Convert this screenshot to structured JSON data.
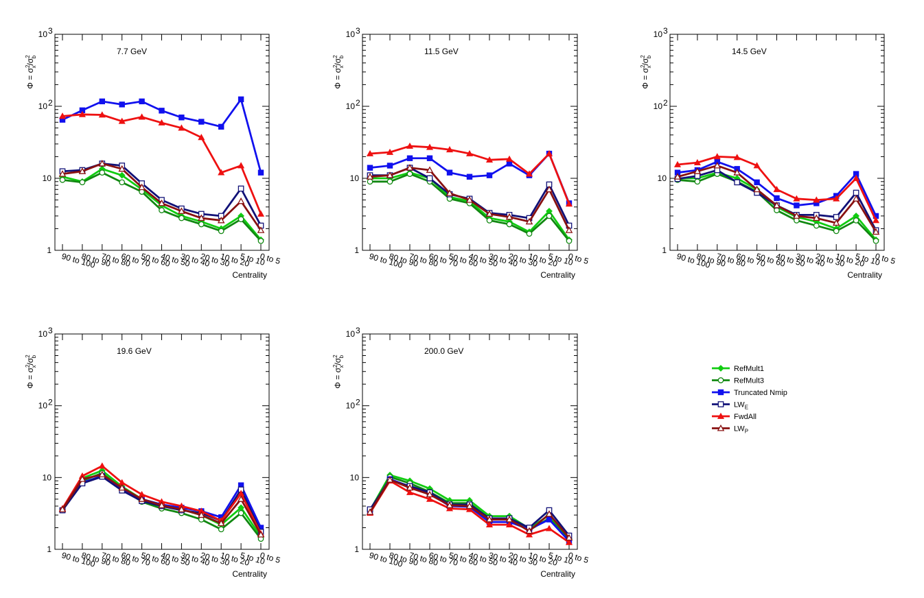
{
  "chart_data": {
    "type": "line",
    "ylabel": "Φ = σ_x²/σ_b²",
    "xlabel": "Centrality",
    "yscale": "log",
    "ylim": [
      1,
      1000
    ],
    "y_ticks": [
      {
        "value": 1,
        "label": "1"
      },
      {
        "value": 10,
        "label": "10"
      },
      {
        "value": 100,
        "label": "10",
        "sup": "2"
      },
      {
        "value": 1000,
        "label": "10",
        "sup": "3"
      }
    ],
    "categories": [
      "90 to 100",
      "80 to 90",
      "70 to 80",
      "60 to 70",
      "50 to 60",
      "40 to 50",
      "30 to 40",
      "20 to 30",
      "10 to 20",
      "5 to 10",
      "0 to 5"
    ],
    "legend": {
      "placement": "right",
      "entries": [
        {
          "name": "RefMult1",
          "base": "RefMult1",
          "sub": "",
          "color": "#11cc11",
          "marker": "diamond-filled"
        },
        {
          "name": "RefMult3",
          "base": "RefMult3",
          "sub": "",
          "color": "#118811",
          "marker": "circle-open"
        },
        {
          "name": "Truncated Nmip",
          "base": "Truncated Nmip",
          "sub": "",
          "color": "#1111ee",
          "marker": "square-filled"
        },
        {
          "name": "LW_E",
          "base": "LW",
          "sub": "E",
          "color": "#111177",
          "marker": "square-open"
        },
        {
          "name": "FwdAll",
          "base": "FwdAll",
          "sub": "",
          "color": "#ee1111",
          "marker": "triangle-filled"
        },
        {
          "name": "LW_P",
          "base": "LW",
          "sub": "P",
          "color": "#881111",
          "marker": "triangle-open"
        }
      ]
    },
    "panels": [
      {
        "title": "7.7 GeV",
        "series": [
          {
            "name": "RefMult1",
            "values": [
              10.5,
              9.0,
              13.5,
              11.0,
              7.0,
              4.2,
              3.0,
              2.5,
              2.0,
              3.0,
              1.4
            ]
          },
          {
            "name": "RefMult3",
            "values": [
              9.5,
              8.8,
              12.0,
              8.8,
              6.5,
              3.6,
              2.8,
              2.3,
              1.85,
              2.7,
              1.35
            ]
          },
          {
            "name": "Truncated Nmip",
            "values": [
              65,
              88,
              117,
              106,
              117,
              87,
              70,
              61,
              52,
              125,
              12
            ]
          },
          {
            "name": "LW_E",
            "values": [
              12.5,
              13.0,
              16.0,
              15.0,
              8.5,
              5.0,
              3.8,
              3.2,
              3.0,
              7.2,
              2.2
            ]
          },
          {
            "name": "FwdAll",
            "values": [
              73,
              77,
              76,
              62,
              71,
              59,
              50,
              37,
              12,
              15,
              3.2
            ]
          },
          {
            "name": "LW_P",
            "values": [
              11.5,
              12.5,
              16.0,
              13.5,
              7.5,
              4.5,
              3.5,
              2.8,
              2.6,
              4.8,
              1.9
            ]
          }
        ]
      },
      {
        "title": "11.5 GeV",
        "series": [
          {
            "name": "RefMult1",
            "values": [
              10.0,
              10.0,
              12.0,
              10.0,
              5.5,
              4.8,
              2.8,
              2.5,
              1.8,
              3.5,
              1.4
            ]
          },
          {
            "name": "RefMult3",
            "values": [
              9.0,
              9.0,
              11.5,
              9.0,
              5.2,
              4.5,
              2.6,
              2.3,
              1.7,
              3.0,
              1.35
            ]
          },
          {
            "name": "Truncated Nmip",
            "values": [
              14,
              15,
              19,
              19,
              12,
              10.5,
              11,
              16,
              11,
              22,
              4.5
            ]
          },
          {
            "name": "LW_E",
            "values": [
              11,
              11,
              14,
              10,
              6,
              5.2,
              3.3,
              3.1,
              2.8,
              8.2,
              2.2
            ]
          },
          {
            "name": "FwdAll",
            "values": [
              22,
              23,
              28,
              27,
              25,
              22,
              18,
              18.5,
              11.5,
              22,
              4.4
            ]
          },
          {
            "name": "LW_P",
            "values": [
              10.5,
              11,
              14,
              13,
              6.2,
              5.0,
              3.2,
              2.9,
              2.5,
              7.0,
              1.9
            ]
          }
        ]
      },
      {
        "title": "14.5 GeV",
        "series": [
          {
            "name": "RefMult1",
            "values": [
              10,
              10,
              12,
              10,
              7,
              4,
              2.9,
              2.5,
              2.0,
              3.0,
              1.4
            ]
          },
          {
            "name": "RefMult3",
            "values": [
              9.5,
              9,
              11.5,
              9,
              6.5,
              3.6,
              2.6,
              2.2,
              1.85,
              2.6,
              1.35
            ]
          },
          {
            "name": "Truncated Nmip",
            "values": [
              12,
              13,
              17,
              13.5,
              8.8,
              5.3,
              4.2,
              4.5,
              5.7,
              11.5,
              3.0
            ]
          },
          {
            "name": "LW_E",
            "values": [
              9.8,
              10.8,
              13,
              8.8,
              6.3,
              4.2,
              3.1,
              3.1,
              2.9,
              6.3,
              1.9
            ]
          },
          {
            "name": "FwdAll",
            "values": [
              15.5,
              16.5,
              20,
              19.5,
              15,
              7.0,
              5.2,
              5.0,
              5.2,
              10,
              2.6
            ]
          },
          {
            "name": "LW_P",
            "values": [
              10.5,
              12.5,
              15,
              12,
              7.0,
              4.2,
              3.0,
              2.8,
              2.4,
              5.2,
              1.8
            ]
          }
        ]
      },
      {
        "title": "19.6 GeV",
        "series": [
          {
            "name": "RefMult1",
            "values": [
              3.6,
              9.8,
              12.5,
              7.5,
              5.0,
              4.2,
              3.6,
              3.0,
              2.2,
              3.8,
              1.5
            ]
          },
          {
            "name": "RefMult3",
            "values": [
              3.5,
              9.0,
              11.5,
              7.0,
              4.6,
              3.7,
              3.2,
              2.6,
              1.9,
              3.2,
              1.4
            ]
          },
          {
            "name": "Truncated Nmip",
            "values": [
              3.5,
              8.5,
              10.5,
              6.8,
              5.0,
              4.2,
              3.8,
              3.4,
              2.8,
              7.8,
              2.0
            ]
          },
          {
            "name": "LW_E",
            "values": [
              3.5,
              8.3,
              10.3,
              6.6,
              4.7,
              4.0,
              3.5,
              3.2,
              2.5,
              6.8,
              1.75
            ]
          },
          {
            "name": "FwdAll",
            "values": [
              3.7,
              10.5,
              14.5,
              8.5,
              5.8,
              4.6,
              4.0,
              3.4,
              2.5,
              6.0,
              1.65
            ]
          },
          {
            "name": "LW_P",
            "values": [
              3.6,
              9.5,
              11.0,
              7.2,
              5.0,
              4.1,
              3.6,
              3.0,
              2.3,
              5.0,
              1.6
            ]
          }
        ]
      },
      {
        "title": "200.0 GeV",
        "series": [
          {
            "name": "RefMult1",
            "values": [
              3.5,
              10.8,
              9.0,
              7.0,
              4.8,
              4.8,
              2.9,
              2.9,
              1.95,
              3.0,
              1.4
            ]
          },
          {
            "name": "RefMult3",
            "values": [
              3.4,
              10.2,
              8.3,
              6.3,
              4.4,
              4.4,
              2.7,
              2.6,
              1.85,
              2.7,
              1.35
            ]
          },
          {
            "name": "Truncated Nmip",
            "values": [
              3.4,
              9.5,
              7.5,
              6.0,
              4.0,
              3.9,
              2.4,
              2.4,
              1.9,
              2.6,
              1.3
            ]
          },
          {
            "name": "LW_E",
            "values": [
              3.6,
              9.2,
              7.6,
              6.2,
              4.2,
              4.2,
              2.7,
              2.7,
              2.0,
              3.5,
              1.55
            ]
          },
          {
            "name": "FwdAll",
            "values": [
              3.2,
              9.0,
              6.2,
              5.0,
              3.7,
              3.6,
              2.2,
              2.2,
              1.6,
              1.95,
              1.25
            ]
          },
          {
            "name": "LW_P",
            "values": [
              3.3,
              9.3,
              7.2,
              5.8,
              4.1,
              4.0,
              2.6,
              2.6,
              1.8,
              3.1,
              1.45
            ]
          }
        ]
      }
    ]
  }
}
